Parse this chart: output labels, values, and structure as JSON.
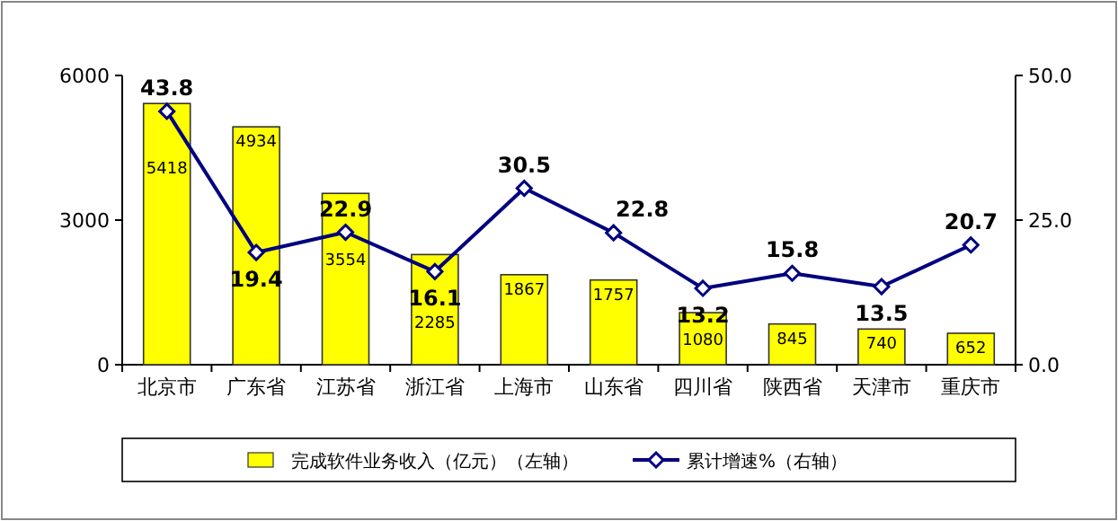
{
  "chart_data": {
    "type": "bar",
    "categories": [
      "北京市",
      "广东省",
      "江苏省",
      "浙江省",
      "上海市",
      "山东省",
      "四川省",
      "陕西省",
      "天津市",
      "重庆市"
    ],
    "series": [
      {
        "name": "完成软件业务收入（亿元）（左轴）",
        "color": "#ffff00",
        "values": [
          5418,
          4934,
          3554,
          2285,
          1867,
          1757,
          1080,
          845,
          740,
          652
        ]
      },
      {
        "name": "累计增速%（右轴）",
        "type": "line",
        "axis": "y2",
        "color": "#00007f",
        "marker": "diamond",
        "values": [
          43.8,
          19.4,
          22.9,
          16.1,
          30.5,
          22.8,
          13.2,
          15.8,
          13.5,
          20.7
        ]
      }
    ],
    "ylim": [
      0,
      6000
    ],
    "yticks": [
      0,
      3000,
      6000
    ],
    "y2lim": [
      0,
      50
    ],
    "y2ticks": [
      {
        "value": 0,
        "label": "0.0"
      },
      {
        "value": 25,
        "label": "25.0"
      },
      {
        "value": 50,
        "label": "50.0"
      }
    ],
    "data_labels": true,
    "legend": "bottom",
    "grid": false
  }
}
